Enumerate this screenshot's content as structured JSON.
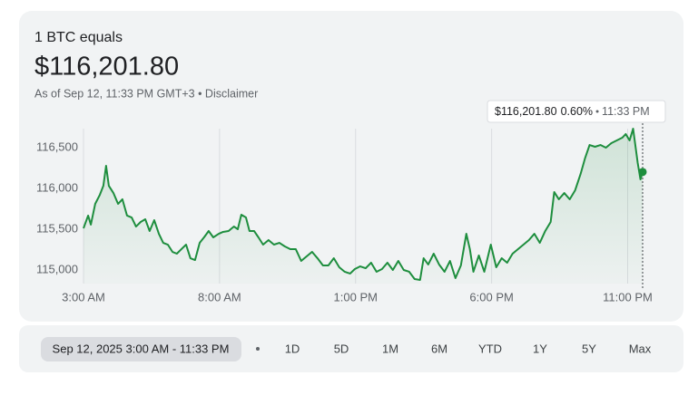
{
  "header": {
    "label": "1 BTC equals",
    "price": "$116,201.80",
    "as_of": "As of Sep 12, 11:33 PM GMT+3 • Disclaimer"
  },
  "chart_data": {
    "type": "line",
    "color": "#1e8e3e",
    "x": [
      3.0,
      3.17,
      3.27,
      3.43,
      3.6,
      3.73,
      3.83,
      3.93,
      4.1,
      4.27,
      4.43,
      4.6,
      4.77,
      4.93,
      5.1,
      5.27,
      5.43,
      5.6,
      5.77,
      5.93,
      6.1,
      6.27,
      6.43,
      6.6,
      6.77,
      6.93,
      7.1,
      7.27,
      7.43,
      7.6,
      7.77,
      7.97,
      8.13,
      8.33,
      8.53,
      8.67,
      8.8,
      8.97,
      9.1,
      9.27,
      9.43,
      9.6,
      9.8,
      10.0,
      10.2,
      10.4,
      10.6,
      10.8,
      11.0,
      11.2,
      11.4,
      11.6,
      11.8,
      12.0,
      12.2,
      12.4,
      12.6,
      12.8,
      12.97,
      13.17,
      13.37,
      13.57,
      13.77,
      13.97,
      14.17,
      14.37,
      14.57,
      14.77,
      14.97,
      15.17,
      15.37,
      15.5,
      15.67,
      15.87,
      16.07,
      16.27,
      16.47,
      16.67,
      16.87,
      17.07,
      17.2,
      17.33,
      17.53,
      17.73,
      17.97,
      18.17,
      18.37,
      18.57,
      18.77,
      18.97,
      19.17,
      19.37,
      19.57,
      19.77,
      19.97,
      20.17,
      20.3,
      20.47,
      20.67,
      20.87,
      21.07,
      21.27,
      21.43,
      21.6,
      21.8,
      22.0,
      22.2,
      22.4,
      22.6,
      22.8,
      22.93,
      23.07,
      23.2,
      23.37,
      23.47,
      23.55
    ],
    "values": [
      115511,
      115667,
      115556,
      115811,
      115922,
      116033,
      116278,
      116033,
      115944,
      115811,
      115867,
      115667,
      115644,
      115533,
      115589,
      115622,
      115478,
      115611,
      115444,
      115333,
      115311,
      115222,
      115200,
      115256,
      115311,
      115144,
      115122,
      115333,
      115400,
      115478,
      115400,
      115444,
      115467,
      115478,
      115533,
      115500,
      115678,
      115644,
      115478,
      115478,
      115400,
      115311,
      115367,
      115311,
      115333,
      115289,
      115256,
      115256,
      115111,
      115167,
      115222,
      115144,
      115056,
      115056,
      115144,
      115033,
      114978,
      114956,
      115011,
      115044,
      115022,
      115089,
      114978,
      115011,
      115089,
      115000,
      115111,
      115000,
      114978,
      114889,
      114878,
      115144,
      115067,
      115200,
      115067,
      114978,
      115111,
      114900,
      115056,
      115444,
      115256,
      114978,
      115178,
      114978,
      115311,
      115033,
      115144,
      115089,
      115200,
      115256,
      115311,
      115367,
      115444,
      115333,
      115478,
      115589,
      115956,
      115867,
      115944,
      115867,
      115978,
      116178,
      116367,
      116533,
      116511,
      116533,
      116500,
      116556,
      116589,
      116622,
      116667,
      116589,
      116733,
      116311,
      116111,
      116201.8
    ],
    "xlim": [
      3,
      23.55
    ],
    "xticks": [
      {
        "value": 3,
        "label": "3:00 AM"
      },
      {
        "value": 8,
        "label": "8:00 AM"
      },
      {
        "value": 13,
        "label": "1:00 PM"
      },
      {
        "value": 18,
        "label": "6:00 PM"
      },
      {
        "value": 23,
        "label": "11:00 PM"
      }
    ],
    "ylim": [
      114830,
      116750
    ],
    "yticks": [
      {
        "value": 115000,
        "label": "115,000"
      },
      {
        "value": 115500,
        "label": "115,500"
      },
      {
        "value": 116000,
        "label": "116,000"
      },
      {
        "value": 116500,
        "label": "116,500"
      }
    ],
    "grid": true,
    "tooltip": {
      "price": "$116,201.80",
      "change": "0.60%",
      "time": "11:33 PM"
    }
  },
  "footer": {
    "date_range": "Sep 12, 2025 3:00 AM - 11:33 PM",
    "ranges": [
      "1D",
      "5D",
      "1M",
      "6M",
      "YTD",
      "1Y",
      "5Y",
      "Max"
    ]
  }
}
